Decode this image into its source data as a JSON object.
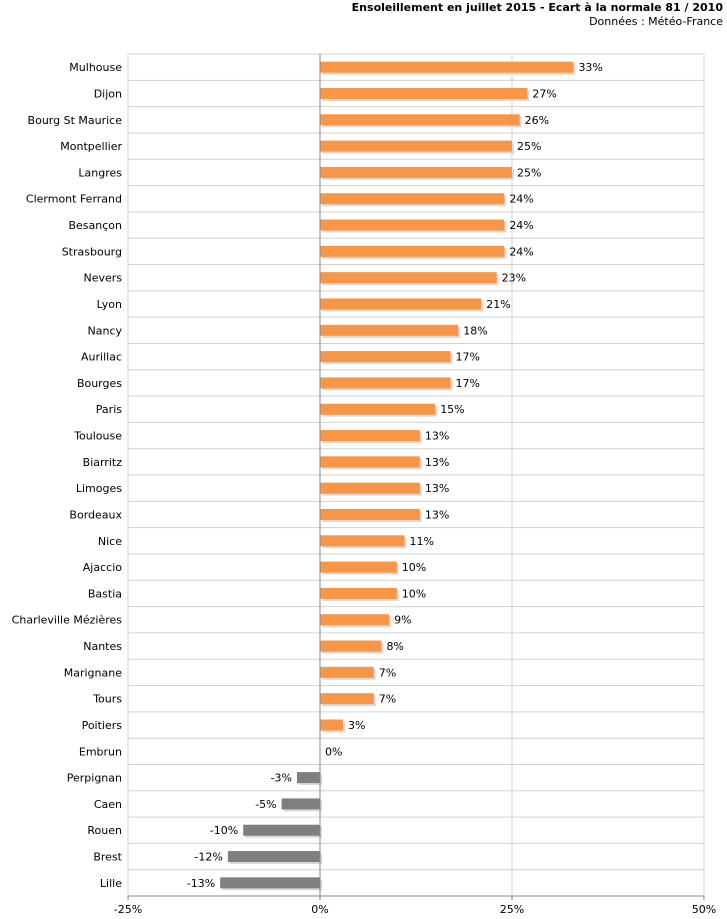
{
  "chart_data": {
    "type": "bar",
    "orientation": "horizontal",
    "title": "Ensoleillement en juillet 2015 - Ecart à la normale 81 / 2010",
    "subtitle": "Données : Météo-France",
    "categories": [
      "Mulhouse",
      "Dijon",
      "Bourg St Maurice",
      "Montpellier",
      "Langres",
      "Clermont Ferrand",
      "Besançon",
      "Strasbourg",
      "Nevers",
      "Lyon",
      "Nancy",
      "Aurillac",
      "Bourges",
      "Paris",
      "Toulouse",
      "Biarritz",
      "Limoges",
      "Bordeaux",
      "Nice",
      "Ajaccio",
      "Bastia",
      "Charleville Mézières",
      "Nantes",
      "Marignane",
      "Tours",
      "Poitiers",
      "Embrun",
      "Perpignan",
      "Caen",
      "Rouen",
      "Brest",
      "Lille"
    ],
    "values": [
      33,
      27,
      26,
      25,
      25,
      24,
      24,
      24,
      23,
      21,
      18,
      17,
      17,
      15,
      13,
      13,
      13,
      13,
      11,
      10,
      10,
      9,
      8,
      7,
      7,
      3,
      0,
      -3,
      -5,
      -10,
      -12,
      -13
    ],
    "data_labels": [
      "33%",
      "27%",
      "26%",
      "25%",
      "25%",
      "24%",
      "24%",
      "24%",
      "23%",
      "21%",
      "18%",
      "17%",
      "17%",
      "15%",
      "13%",
      "13%",
      "13%",
      "13%",
      "11%",
      "10%",
      "10%",
      "9%",
      "8%",
      "7%",
      "7%",
      "3%",
      "0%",
      "-3%",
      "-5%",
      "-10%",
      "-12%",
      "-13%"
    ],
    "xlim": [
      -25,
      50
    ],
    "xticks": [
      -25,
      0,
      25,
      50
    ],
    "xtick_labels": [
      "-25%",
      "0%",
      "25%",
      "50%"
    ],
    "grid": true,
    "colors": {
      "positive": "#f79646",
      "negative": "#7f7f7f",
      "shadow": "#d9d9d9",
      "grid": "#d0d0d0",
      "axis": "#888888"
    }
  }
}
